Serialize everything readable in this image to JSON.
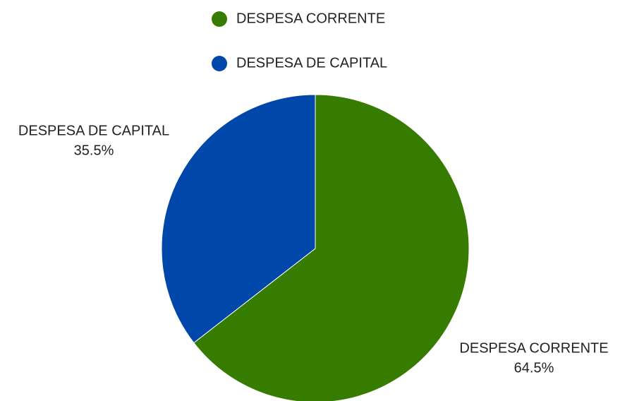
{
  "chart_data": {
    "type": "pie",
    "categories": [
      "DESPESA CORRENTE",
      "DESPESA DE CAPITAL"
    ],
    "values": [
      64.5,
      35.5
    ],
    "value_labels": [
      "64.5%",
      "35.5%"
    ],
    "colors": [
      "#367c00",
      "#0047ab"
    ]
  }
}
